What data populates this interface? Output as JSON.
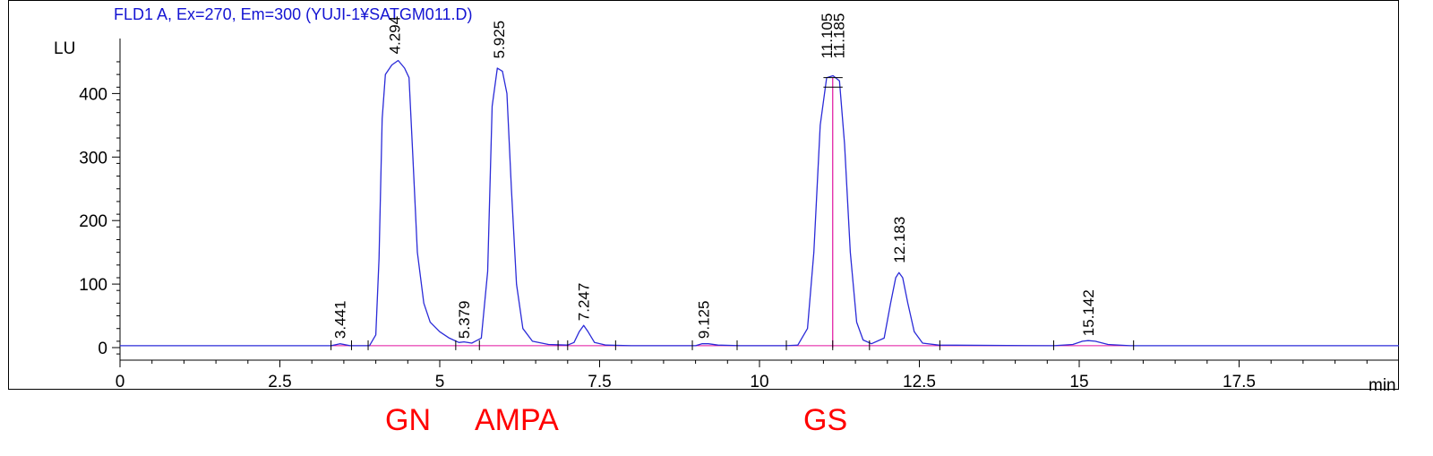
{
  "chart_data": {
    "type": "line",
    "title": "FLD1 A, Ex=270, Em=300 (YUJI-1¥SATGM011.D)",
    "ylabel": "LU",
    "xlabel": "min",
    "xlim": [
      0,
      20
    ],
    "ylim": [
      -15,
      480
    ],
    "x_ticks": [
      0,
      2.5,
      5,
      7.5,
      10,
      12.5,
      15,
      17.5
    ],
    "x_tick_labels": [
      "0",
      "2.5",
      "5",
      "7.5",
      "10",
      "12.5",
      "15",
      "17.5"
    ],
    "y_ticks": [
      0,
      100,
      200,
      300,
      400
    ],
    "y_tick_labels": [
      "0",
      "100",
      "200",
      "300",
      "400"
    ],
    "baseline": 3,
    "peaks": [
      {
        "label": "3.441",
        "rt": 3.441,
        "height": 6
      },
      {
        "label": "4.294",
        "rt": 4.294,
        "height": 455
      },
      {
        "label": "5.379",
        "rt": 5.379,
        "height": 9
      },
      {
        "label": "5.925",
        "rt": 5.925,
        "height": 440
      },
      {
        "label": "7.247",
        "rt": 7.247,
        "height": 35
      },
      {
        "label": "9.125",
        "rt": 9.125,
        "height": 6
      },
      {
        "label": "11.105",
        "rt": 11.105,
        "height": 425
      },
      {
        "label": "11.185",
        "rt": 11.185,
        "height": 425
      },
      {
        "label": "12.183",
        "rt": 12.183,
        "height": 118
      },
      {
        "label": "15.142",
        "rt": 15.142,
        "height": 11
      }
    ],
    "series": [
      {
        "color": "#2b2bd8",
        "points": [
          [
            0,
            3
          ],
          [
            3.3,
            3
          ],
          [
            3.44,
            6
          ],
          [
            3.6,
            3
          ],
          [
            3.9,
            3
          ],
          [
            4.0,
            20
          ],
          [
            4.05,
            140
          ],
          [
            4.1,
            360
          ],
          [
            4.15,
            430
          ],
          [
            4.25,
            445
          ],
          [
            4.35,
            452
          ],
          [
            4.45,
            440
          ],
          [
            4.52,
            425
          ],
          [
            4.58,
            300
          ],
          [
            4.65,
            150
          ],
          [
            4.75,
            70
          ],
          [
            4.85,
            40
          ],
          [
            5.0,
            25
          ],
          [
            5.15,
            15
          ],
          [
            5.3,
            8
          ],
          [
            5.38,
            9
          ],
          [
            5.5,
            7
          ],
          [
            5.65,
            15
          ],
          [
            5.75,
            120
          ],
          [
            5.82,
            380
          ],
          [
            5.9,
            440
          ],
          [
            5.98,
            435
          ],
          [
            6.05,
            400
          ],
          [
            6.12,
            250
          ],
          [
            6.2,
            100
          ],
          [
            6.3,
            30
          ],
          [
            6.45,
            10
          ],
          [
            6.7,
            5
          ],
          [
            7.0,
            4
          ],
          [
            7.1,
            8
          ],
          [
            7.18,
            25
          ],
          [
            7.25,
            35
          ],
          [
            7.32,
            25
          ],
          [
            7.42,
            8
          ],
          [
            7.6,
            4
          ],
          [
            8.0,
            3
          ],
          [
            9.0,
            3
          ],
          [
            9.1,
            6
          ],
          [
            9.2,
            6
          ],
          [
            9.35,
            4
          ],
          [
            9.7,
            3
          ],
          [
            10.4,
            3
          ],
          [
            10.6,
            4
          ],
          [
            10.75,
            30
          ],
          [
            10.85,
            150
          ],
          [
            10.95,
            350
          ],
          [
            11.05,
            425
          ],
          [
            11.15,
            428
          ],
          [
            11.25,
            420
          ],
          [
            11.33,
            320
          ],
          [
            11.42,
            150
          ],
          [
            11.52,
            40
          ],
          [
            11.62,
            12
          ],
          [
            11.75,
            6
          ],
          [
            11.95,
            15
          ],
          [
            12.05,
            70
          ],
          [
            12.13,
            110
          ],
          [
            12.18,
            118
          ],
          [
            12.24,
            110
          ],
          [
            12.32,
            70
          ],
          [
            12.42,
            25
          ],
          [
            12.55,
            7
          ],
          [
            12.8,
            4
          ],
          [
            14.6,
            3
          ],
          [
            14.9,
            5
          ],
          [
            15.05,
            10
          ],
          [
            15.14,
            11
          ],
          [
            15.25,
            10
          ],
          [
            15.45,
            5
          ],
          [
            15.8,
            3
          ],
          [
            20,
            3
          ]
        ]
      }
    ],
    "peak_split_line": {
      "rt": 11.145,
      "color": "#e0119f"
    },
    "integration_marker_rts": [
      3.3,
      3.62,
      3.88,
      5.25,
      5.62,
      6.85,
      7.0,
      7.75,
      8.95,
      9.65,
      10.42,
      11.145,
      11.72,
      12.82,
      14.6,
      15.85
    ]
  },
  "annotations": {
    "gn": "GN",
    "ampa": "AMPA",
    "gs": "GS"
  },
  "colors": {
    "trace": "#2b2bd8",
    "baseline": "#e0119f",
    "title": "#1414d2",
    "annotation": "#ff0000"
  }
}
